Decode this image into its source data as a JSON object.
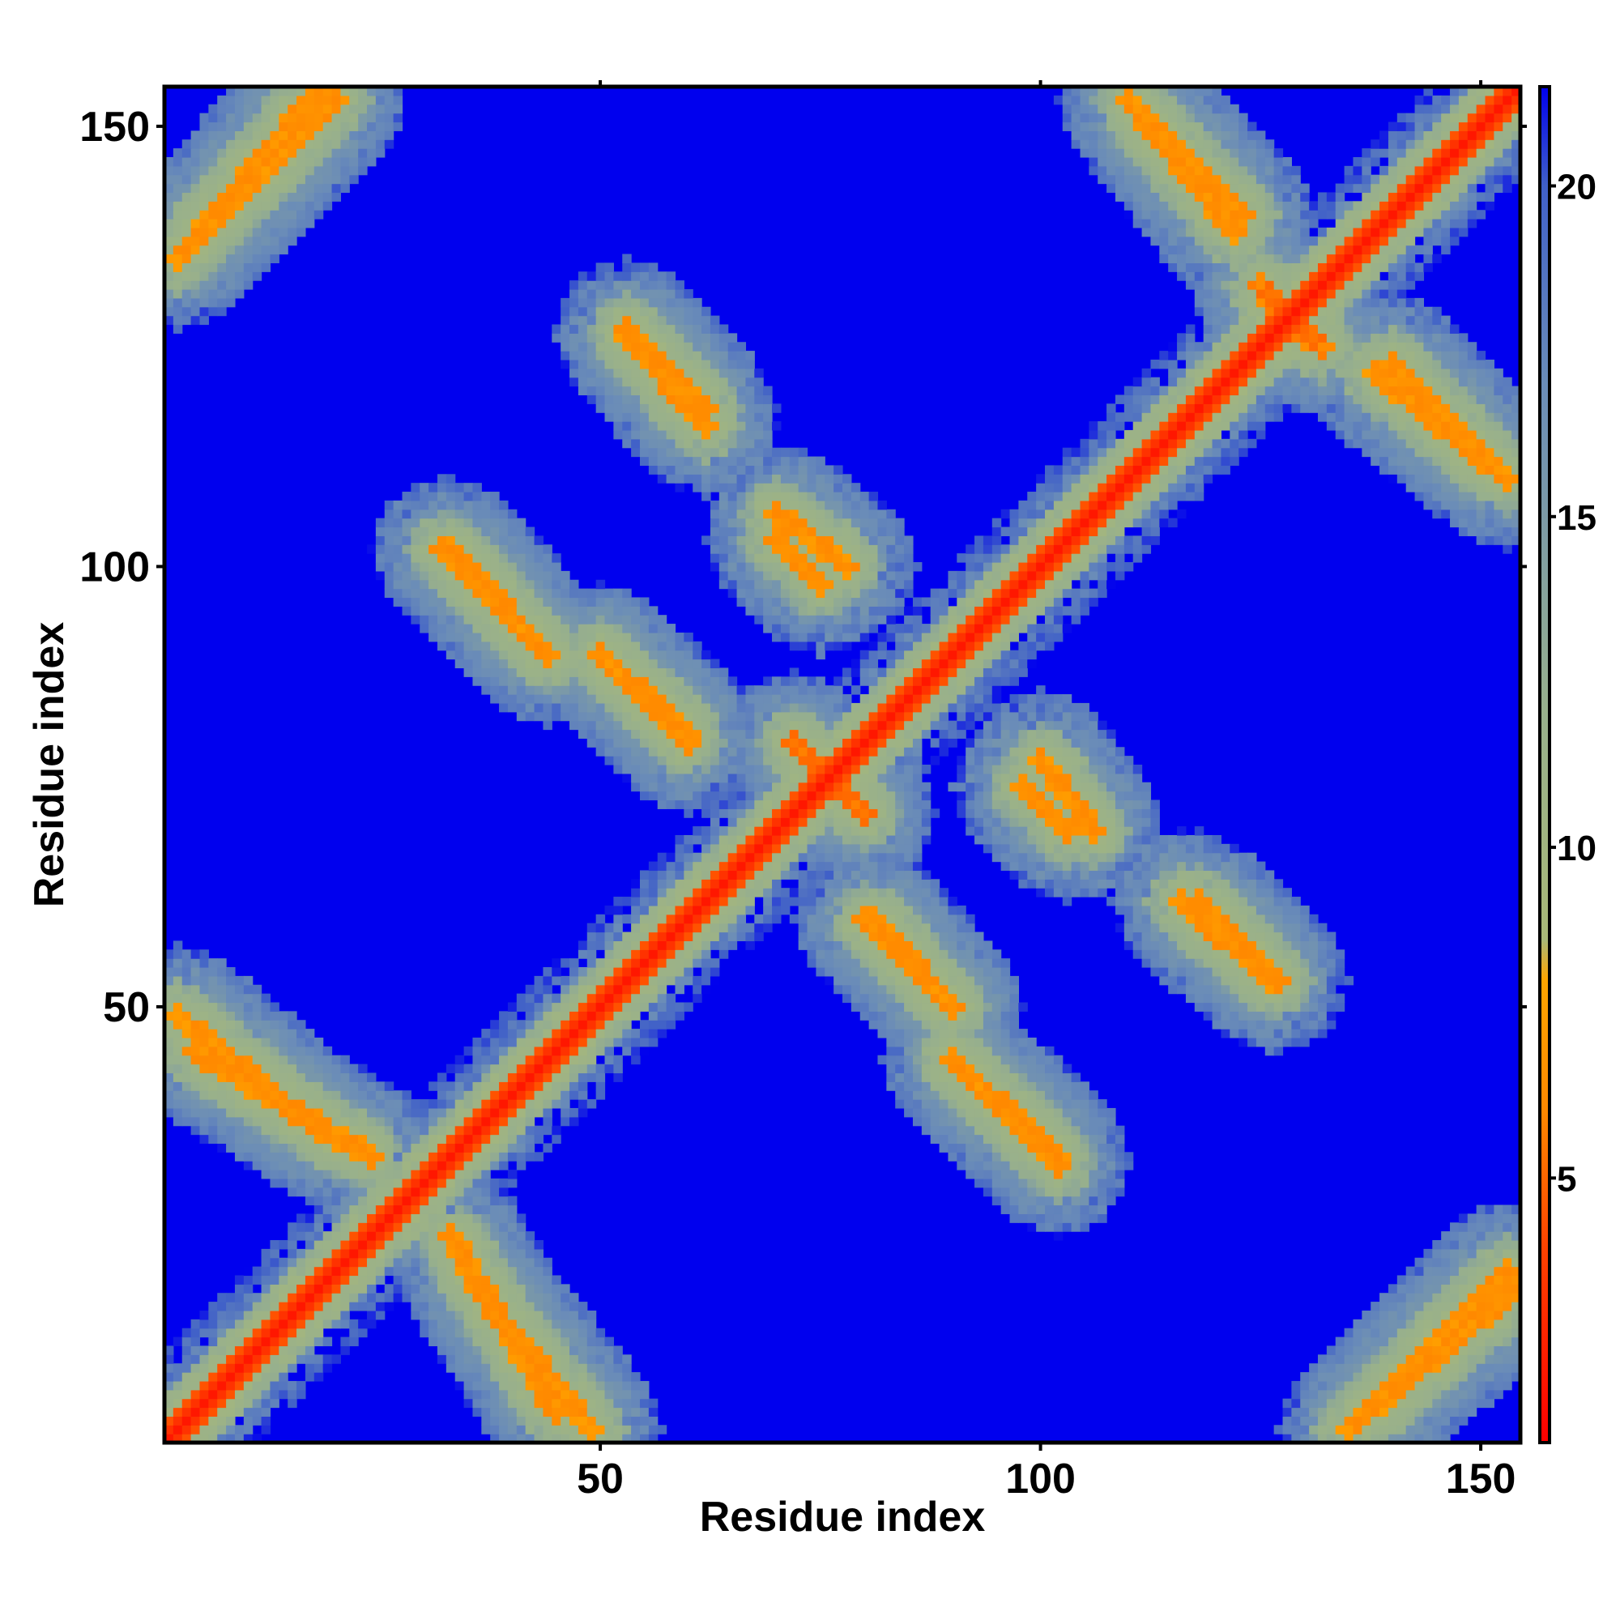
{
  "chart_data": {
    "type": "heatmap",
    "title": "",
    "xlabel": "Residue index",
    "ylabel": "Residue index",
    "n_residues": 154,
    "xlim": [
      1,
      154
    ],
    "ylim": [
      1,
      154
    ],
    "x_ticks": [
      50,
      100,
      150
    ],
    "y_ticks": [
      50,
      100,
      150
    ],
    "x_tick_labels": [
      "50",
      "100",
      "150"
    ],
    "y_tick_labels": [
      "50",
      "100",
      "150"
    ],
    "colorbar": {
      "range": [
        1,
        21.5
      ],
      "ticks": [
        5,
        10,
        15,
        20
      ],
      "tick_labels": [
        "5",
        "10",
        "15",
        "20"
      ],
      "stops": [
        {
          "value": 1,
          "color": "#ff0000"
        },
        {
          "value": 4,
          "color": "#ff4400"
        },
        {
          "value": 6,
          "color": "#ff8800"
        },
        {
          "value": 8,
          "color": "#ffa500"
        },
        {
          "value": 8.6,
          "color": "#a8b878"
        },
        {
          "value": 12,
          "color": "#98b08c"
        },
        {
          "value": 17,
          "color": "#6a8cb8"
        },
        {
          "value": 20,
          "color": "#4060c8"
        },
        {
          "value": 21.5,
          "color": "#0000ee"
        }
      ]
    },
    "background_value": 21.5,
    "diagonal_band": {
      "value_at_diagonal": 2,
      "half_width_residues": 2
    },
    "contact_bands": [
      {
        "x_start": 2,
        "y_start": 49,
        "x_end": 18,
        "y_end": 36,
        "core_value": 6
      },
      {
        "x_start": 33,
        "y_start": 24,
        "x_end": 45,
        "y_end": 4,
        "core_value": 6
      },
      {
        "x_start": 32,
        "y_start": 102,
        "x_end": 44,
        "y_end": 90,
        "core_value": 6
      },
      {
        "x_start": 50,
        "y_start": 90,
        "x_end": 60,
        "y_end": 81,
        "core_value": 6
      },
      {
        "x_start": 53,
        "y_start": 126,
        "x_end": 62,
        "y_end": 116,
        "core_value": 6
      },
      {
        "x_start": 70,
        "y_start": 103,
        "x_end": 75,
        "y_end": 98,
        "core_value": 6
      },
      {
        "x_start": 80,
        "y_start": 60,
        "x_end": 90,
        "y_end": 50,
        "core_value": 6
      },
      {
        "x_start": 90,
        "y_start": 44,
        "x_end": 102,
        "y_end": 33,
        "core_value": 6
      },
      {
        "x_start": 113,
        "y_start": 150,
        "x_end": 123,
        "y_end": 140,
        "core_value": 6
      },
      {
        "x_start": 118,
        "y_start": 62,
        "x_end": 127,
        "y_end": 53,
        "core_value": 6
      },
      {
        "x_start": 138,
        "y_start": 122,
        "x_end": 153,
        "y_end": 110,
        "core_value": 6
      },
      {
        "x_start": 100,
        "y_start": 78,
        "x_end": 106,
        "y_end": 70,
        "core_value": 6
      },
      {
        "x_start": 2,
        "y_start": 135,
        "x_end": 18,
        "y_end": 154,
        "core_value": 6
      },
      {
        "x_start": 137,
        "y_start": 4,
        "x_end": 153,
        "y_end": 20,
        "core_value": 6
      },
      {
        "x_start": 126,
        "y_start": 130,
        "x_end": 132,
        "y_end": 125,
        "core_value": 5
      },
      {
        "x_start": 72,
        "y_start": 80,
        "x_end": 80,
        "y_end": 72,
        "core_value": 5
      }
    ],
    "grid": false,
    "legend": "colorbar-right"
  }
}
